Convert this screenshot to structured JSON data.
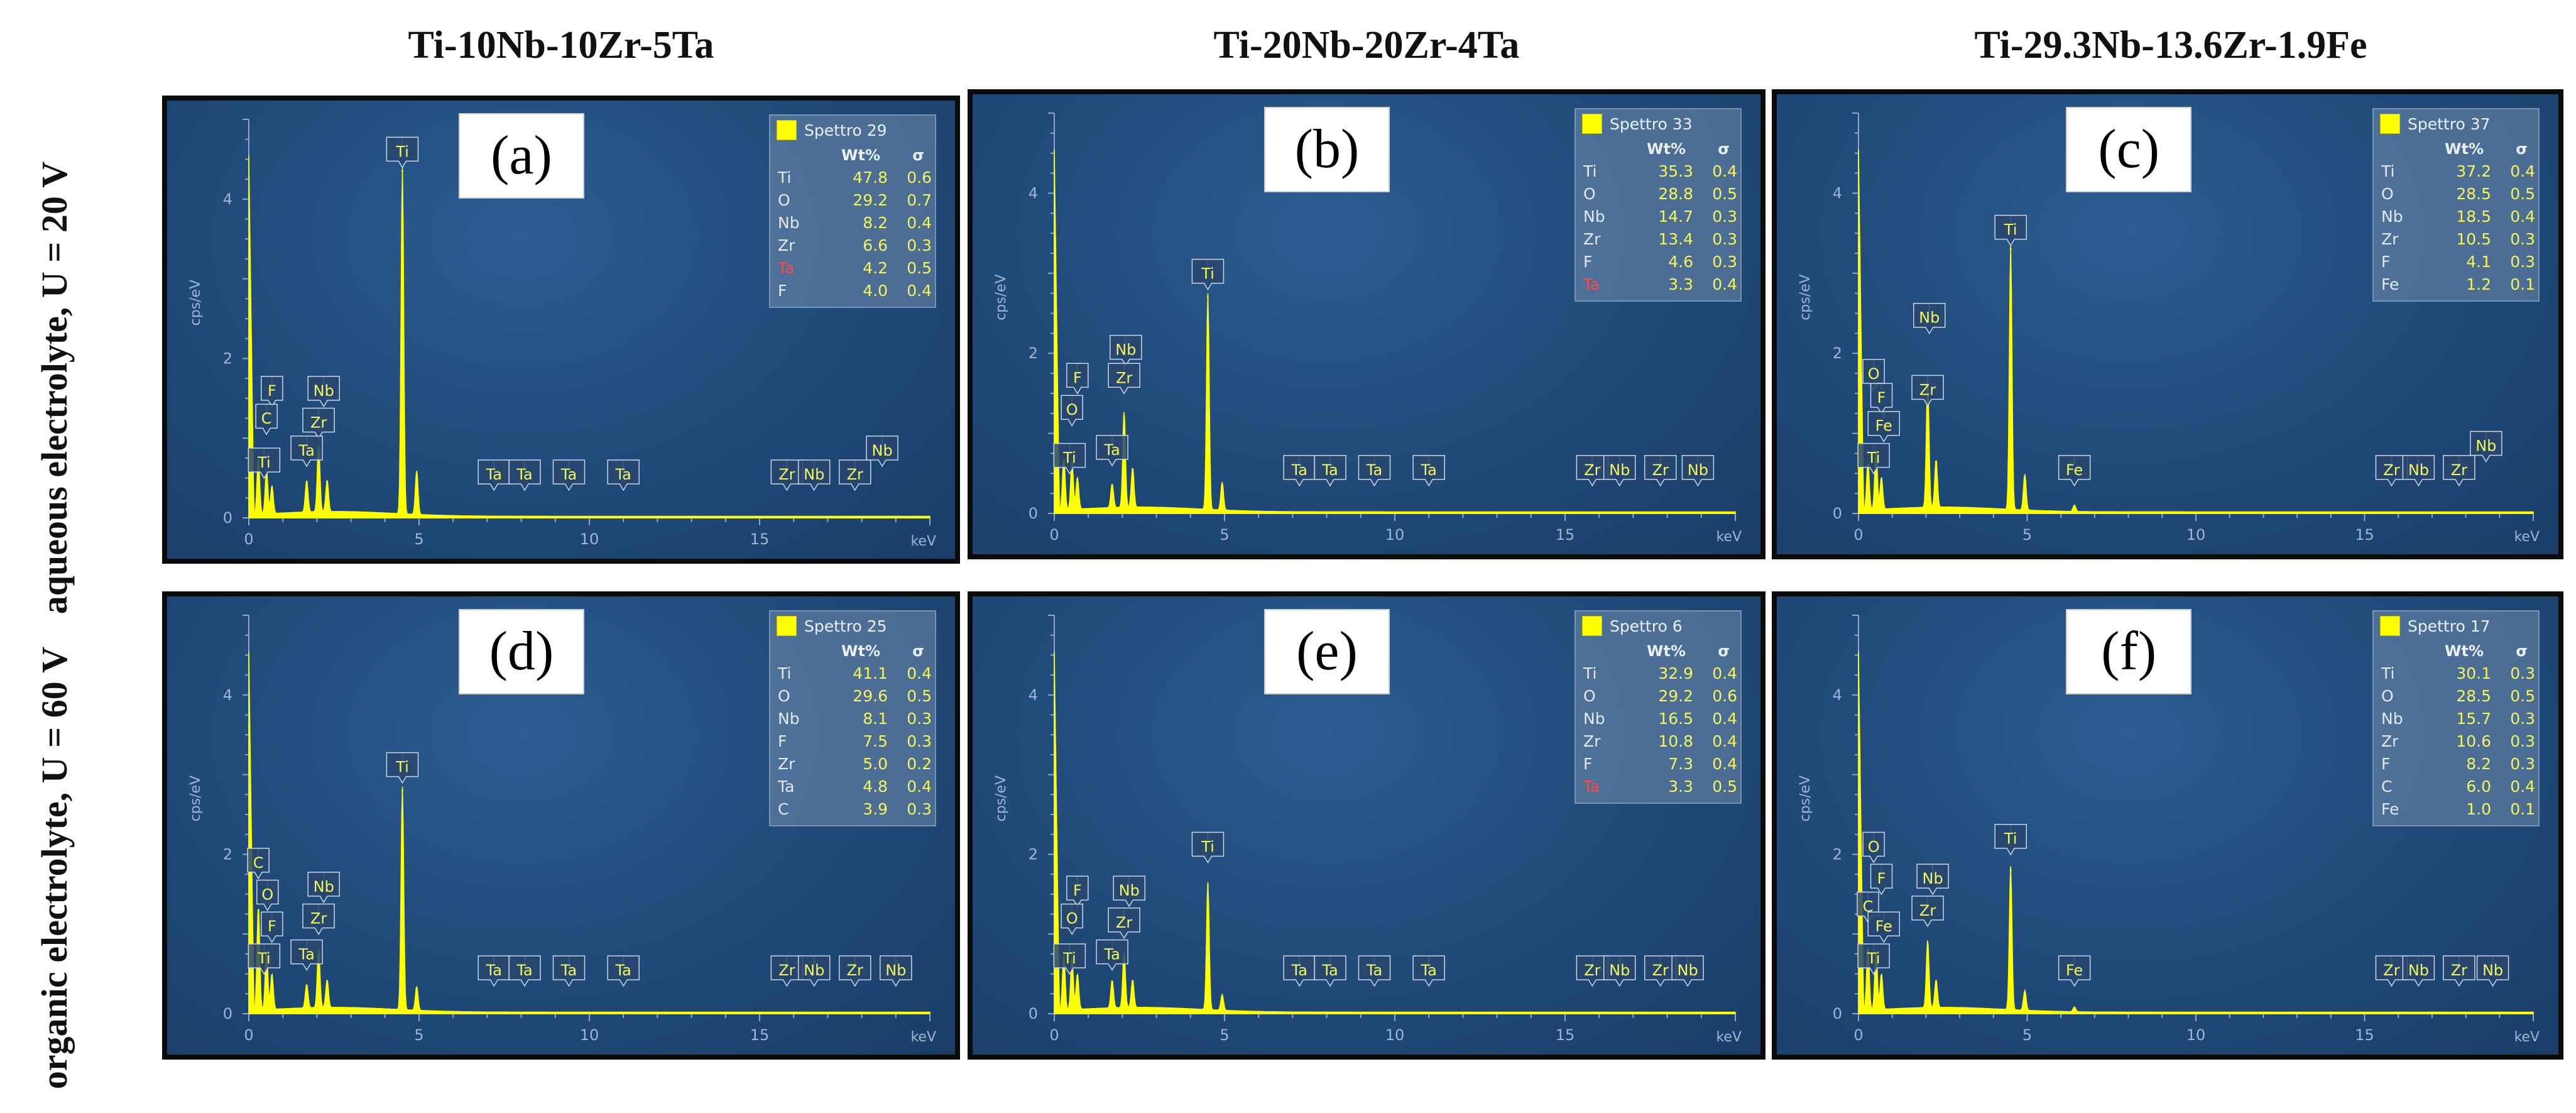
{
  "column_titles": [
    "Ti-10Nb-10Zr-5Ta",
    "Ti-20Nb-20Zr-4Ta",
    "Ti-29.3Nb-13.6Zr-1.9Fe"
  ],
  "row_titles": [
    "aqueous electrolyte, U = 20 V",
    "organic electrolyte, U = 60 V"
  ],
  "colors": {
    "background": "#1e4674",
    "spectrum": "#ffff00",
    "axis_text": "#9fb6d3",
    "highlight_element": "#ff4a4a"
  },
  "chart_data": [
    {
      "type": "line",
      "panel_label": "(a)",
      "spectrum_name": "Spettro 29",
      "xlabel": "keV",
      "ylabel": "cps/eV",
      "xlim": [
        0,
        20
      ],
      "ylim": [
        0,
        5
      ],
      "x_ticks": [
        "0",
        "5",
        "10",
        "15"
      ],
      "y_ticks": [
        "0",
        "2",
        "4"
      ],
      "table_header": [
        "Wt%",
        "σ"
      ],
      "composition": [
        {
          "element": "Ti",
          "wt": "47.8",
          "sigma": "0.6"
        },
        {
          "element": "O",
          "wt": "29.2",
          "sigma": "0.7"
        },
        {
          "element": "Nb",
          "wt": "8.2",
          "sigma": "0.4"
        },
        {
          "element": "Zr",
          "wt": "6.6",
          "sigma": "0.3"
        },
        {
          "element": "Ta",
          "wt": "4.2",
          "sigma": "0.5",
          "highlight": true
        },
        {
          "element": "F",
          "wt": "4.0",
          "sigma": "0.4"
        }
      ],
      "peaks": [
        {
          "x": 0.28,
          "y": 0.7
        },
        {
          "x": 0.52,
          "y": 0.55
        },
        {
          "x": 0.68,
          "y": 0.35
        },
        {
          "x": 1.7,
          "y": 0.4
        },
        {
          "x": 2.05,
          "y": 0.85
        },
        {
          "x": 2.3,
          "y": 0.4
        },
        {
          "x": 4.51,
          "y": 4.35
        },
        {
          "x": 4.93,
          "y": 0.55
        }
      ],
      "annotations": [
        {
          "text": "F",
          "x": 0.68,
          "y": 1.35
        },
        {
          "text": "C",
          "x": 0.52,
          "y": 1.0
        },
        {
          "text": "Ti",
          "x": 0.45,
          "y": 0.45
        },
        {
          "text": "Nb",
          "x": 2.2,
          "y": 1.35
        },
        {
          "text": "Zr",
          "x": 2.05,
          "y": 0.95
        },
        {
          "text": "Ta",
          "x": 1.7,
          "y": 0.6
        },
        {
          "text": "Ti",
          "x": 4.51,
          "y": 4.35
        },
        {
          "text": "Ta",
          "x": 7.2,
          "y": 0.3
        },
        {
          "text": "Ta",
          "x": 8.1,
          "y": 0.3
        },
        {
          "text": "Ta",
          "x": 9.4,
          "y": 0.3
        },
        {
          "text": "Ta",
          "x": 11.0,
          "y": 0.3
        },
        {
          "text": "Zr",
          "x": 15.8,
          "y": 0.3
        },
        {
          "text": "Nb",
          "x": 16.6,
          "y": 0.3
        },
        {
          "text": "Zr",
          "x": 17.8,
          "y": 0.3
        },
        {
          "text": "Nb",
          "x": 18.6,
          "y": 0.6
        }
      ]
    },
    {
      "type": "line",
      "panel_label": "(b)",
      "spectrum_name": "Spettro 33",
      "xlabel": "keV",
      "ylabel": "cps/eV",
      "xlim": [
        0,
        20
      ],
      "ylim": [
        0,
        5
      ],
      "x_ticks": [
        "0",
        "5",
        "10",
        "15"
      ],
      "y_ticks": [
        "0",
        "2",
        "4"
      ],
      "table_header": [
        "Wt%",
        "σ"
      ],
      "composition": [
        {
          "element": "Ti",
          "wt": "35.3",
          "sigma": "0.4"
        },
        {
          "element": "O",
          "wt": "28.8",
          "sigma": "0.5"
        },
        {
          "element": "Nb",
          "wt": "14.7",
          "sigma": "0.3"
        },
        {
          "element": "Zr",
          "wt": "13.4",
          "sigma": "0.3"
        },
        {
          "element": "F",
          "wt": "4.6",
          "sigma": "0.3"
        },
        {
          "element": "Ta",
          "wt": "3.3",
          "sigma": "0.4",
          "highlight": true
        }
      ],
      "peaks": [
        {
          "x": 0.28,
          "y": 0.65
        },
        {
          "x": 0.52,
          "y": 0.6
        },
        {
          "x": 0.68,
          "y": 0.4
        },
        {
          "x": 1.7,
          "y": 0.3
        },
        {
          "x": 2.05,
          "y": 1.2
        },
        {
          "x": 2.3,
          "y": 0.5
        },
        {
          "x": 4.51,
          "y": 2.7
        },
        {
          "x": 4.93,
          "y": 0.35
        }
      ],
      "annotations": [
        {
          "text": "F",
          "x": 0.68,
          "y": 1.45
        },
        {
          "text": "O",
          "x": 0.52,
          "y": 1.05
        },
        {
          "text": "Ti",
          "x": 0.45,
          "y": 0.45
        },
        {
          "text": "Nb",
          "x": 2.1,
          "y": 1.8
        },
        {
          "text": "Zr",
          "x": 2.05,
          "y": 1.45
        },
        {
          "text": "Ta",
          "x": 1.7,
          "y": 0.55
        },
        {
          "text": "Ti",
          "x": 4.51,
          "y": 2.75
        },
        {
          "text": "Ta",
          "x": 7.2,
          "y": 0.3
        },
        {
          "text": "Ta",
          "x": 8.1,
          "y": 0.3
        },
        {
          "text": "Ta",
          "x": 9.4,
          "y": 0.3
        },
        {
          "text": "Ta",
          "x": 11.0,
          "y": 0.3
        },
        {
          "text": "Zr",
          "x": 15.8,
          "y": 0.3
        },
        {
          "text": "Nb",
          "x": 16.6,
          "y": 0.3
        },
        {
          "text": "Zr",
          "x": 17.8,
          "y": 0.3
        },
        {
          "text": "Nb",
          "x": 18.9,
          "y": 0.3
        }
      ]
    },
    {
      "type": "line",
      "panel_label": "(c)",
      "spectrum_name": "Spettro 37",
      "xlabel": "keV",
      "ylabel": "cps/eV",
      "xlim": [
        0,
        20
      ],
      "ylim": [
        0,
        5
      ],
      "x_ticks": [
        "0",
        "5",
        "10",
        "15"
      ],
      "y_ticks": [
        "0",
        "2",
        "4"
      ],
      "table_header": [
        "Wt%",
        "σ"
      ],
      "composition": [
        {
          "element": "Ti",
          "wt": "37.2",
          "sigma": "0.4"
        },
        {
          "element": "O",
          "wt": "28.5",
          "sigma": "0.5"
        },
        {
          "element": "Nb",
          "wt": "18.5",
          "sigma": "0.4"
        },
        {
          "element": "Zr",
          "wt": "10.5",
          "sigma": "0.3"
        },
        {
          "element": "F",
          "wt": "4.1",
          "sigma": "0.3"
        },
        {
          "element": "Fe",
          "wt": "1.2",
          "sigma": "0.1"
        }
      ],
      "peaks": [
        {
          "x": 0.28,
          "y": 0.6
        },
        {
          "x": 0.52,
          "y": 0.75
        },
        {
          "x": 0.68,
          "y": 0.4
        },
        {
          "x": 2.05,
          "y": 1.6
        },
        {
          "x": 2.3,
          "y": 0.6
        },
        {
          "x": 4.51,
          "y": 3.3
        },
        {
          "x": 4.93,
          "y": 0.45
        },
        {
          "x": 6.4,
          "y": 0.08
        }
      ],
      "annotations": [
        {
          "text": "O",
          "x": 0.45,
          "y": 1.5
        },
        {
          "text": "F",
          "x": 0.68,
          "y": 1.2
        },
        {
          "text": "Fe",
          "x": 0.75,
          "y": 0.85
        },
        {
          "text": "Ti",
          "x": 0.45,
          "y": 0.45
        },
        {
          "text": "Nb",
          "x": 2.1,
          "y": 2.2
        },
        {
          "text": "Zr",
          "x": 2.05,
          "y": 1.3
        },
        {
          "text": "Ti",
          "x": 4.51,
          "y": 3.3
        },
        {
          "text": "Fe",
          "x": 6.4,
          "y": 0.3
        },
        {
          "text": "Zr",
          "x": 15.8,
          "y": 0.3
        },
        {
          "text": "Nb",
          "x": 16.6,
          "y": 0.3
        },
        {
          "text": "Zr",
          "x": 17.8,
          "y": 0.3
        },
        {
          "text": "Nb",
          "x": 18.6,
          "y": 0.6
        }
      ]
    },
    {
      "type": "line",
      "panel_label": "(d)",
      "spectrum_name": "Spettro 25",
      "xlabel": "keV",
      "ylabel": "cps/eV",
      "xlim": [
        0,
        20
      ],
      "ylim": [
        0,
        5
      ],
      "x_ticks": [
        "0",
        "5",
        "10",
        "15"
      ],
      "y_ticks": [
        "0",
        "2",
        "4"
      ],
      "table_header": [
        "Wt%",
        "σ"
      ],
      "composition": [
        {
          "element": "Ti",
          "wt": "41.1",
          "sigma": "0.4"
        },
        {
          "element": "O",
          "wt": "29.6",
          "sigma": "0.5"
        },
        {
          "element": "Nb",
          "wt": "8.1",
          "sigma": "0.3"
        },
        {
          "element": "F",
          "wt": "7.5",
          "sigma": "0.3"
        },
        {
          "element": "Zr",
          "wt": "5.0",
          "sigma": "0.2"
        },
        {
          "element": "Ta",
          "wt": "4.8",
          "sigma": "0.4"
        },
        {
          "element": "C",
          "wt": "3.9",
          "sigma": "0.3"
        }
      ],
      "peaks": [
        {
          "x": 0.28,
          "y": 1.3
        },
        {
          "x": 0.52,
          "y": 0.75
        },
        {
          "x": 0.68,
          "y": 0.45
        },
        {
          "x": 1.7,
          "y": 0.3
        },
        {
          "x": 2.05,
          "y": 0.75
        },
        {
          "x": 2.3,
          "y": 0.35
        },
        {
          "x": 4.51,
          "y": 2.8
        },
        {
          "x": 4.93,
          "y": 0.3
        }
      ],
      "annotations": [
        {
          "text": "C",
          "x": 0.28,
          "y": 1.65
        },
        {
          "text": "O",
          "x": 0.55,
          "y": 1.25
        },
        {
          "text": "F",
          "x": 0.68,
          "y": 0.85
        },
        {
          "text": "Ti",
          "x": 0.45,
          "y": 0.45
        },
        {
          "text": "Nb",
          "x": 2.2,
          "y": 1.35
        },
        {
          "text": "Zr",
          "x": 2.05,
          "y": 0.95
        },
        {
          "text": "Ta",
          "x": 1.7,
          "y": 0.5
        },
        {
          "text": "Ti",
          "x": 4.51,
          "y": 2.85
        },
        {
          "text": "Ta",
          "x": 7.2,
          "y": 0.3
        },
        {
          "text": "Ta",
          "x": 8.1,
          "y": 0.3
        },
        {
          "text": "Ta",
          "x": 9.4,
          "y": 0.3
        },
        {
          "text": "Ta",
          "x": 11.0,
          "y": 0.3
        },
        {
          "text": "Zr",
          "x": 15.8,
          "y": 0.3
        },
        {
          "text": "Nb",
          "x": 16.6,
          "y": 0.3
        },
        {
          "text": "Zr",
          "x": 17.8,
          "y": 0.3
        },
        {
          "text": "Nb",
          "x": 19.0,
          "y": 0.3
        }
      ]
    },
    {
      "type": "line",
      "panel_label": "(e)",
      "spectrum_name": "Spettro 6",
      "xlabel": "keV",
      "ylabel": "cps/eV",
      "xlim": [
        0,
        20
      ],
      "ylim": [
        0,
        5
      ],
      "x_ticks": [
        "0",
        "5",
        "10",
        "15"
      ],
      "y_ticks": [
        "0",
        "2",
        "4"
      ],
      "table_header": [
        "Wt%",
        "σ"
      ],
      "composition": [
        {
          "element": "Ti",
          "wt": "32.9",
          "sigma": "0.4"
        },
        {
          "element": "O",
          "wt": "29.2",
          "sigma": "0.6"
        },
        {
          "element": "Nb",
          "wt": "16.5",
          "sigma": "0.4"
        },
        {
          "element": "Zr",
          "wt": "10.8",
          "sigma": "0.4"
        },
        {
          "element": "F",
          "wt": "7.3",
          "sigma": "0.4"
        },
        {
          "element": "Ta",
          "wt": "3.3",
          "sigma": "0.5",
          "highlight": true
        }
      ],
      "peaks": [
        {
          "x": 0.28,
          "y": 0.7
        },
        {
          "x": 0.52,
          "y": 0.65
        },
        {
          "x": 0.68,
          "y": 0.45
        },
        {
          "x": 1.7,
          "y": 0.35
        },
        {
          "x": 2.05,
          "y": 0.7
        },
        {
          "x": 2.3,
          "y": 0.35
        },
        {
          "x": 4.51,
          "y": 1.6
        },
        {
          "x": 4.93,
          "y": 0.2
        }
      ],
      "annotations": [
        {
          "text": "F",
          "x": 0.68,
          "y": 1.3
        },
        {
          "text": "O",
          "x": 0.52,
          "y": 0.95
        },
        {
          "text": "Ti",
          "x": 0.45,
          "y": 0.45
        },
        {
          "text": "Nb",
          "x": 2.2,
          "y": 1.3
        },
        {
          "text": "Zr",
          "x": 2.05,
          "y": 0.9
        },
        {
          "text": "Ta",
          "x": 1.7,
          "y": 0.5
        },
        {
          "text": "Ti",
          "x": 4.51,
          "y": 1.85
        },
        {
          "text": "Ta",
          "x": 7.2,
          "y": 0.3
        },
        {
          "text": "Ta",
          "x": 8.1,
          "y": 0.3
        },
        {
          "text": "Ta",
          "x": 9.4,
          "y": 0.3
        },
        {
          "text": "Ta",
          "x": 11.0,
          "y": 0.3
        },
        {
          "text": "Zr",
          "x": 15.8,
          "y": 0.3
        },
        {
          "text": "Nb",
          "x": 16.6,
          "y": 0.3
        },
        {
          "text": "Zr",
          "x": 17.8,
          "y": 0.3
        },
        {
          "text": "Nb",
          "x": 18.6,
          "y": 0.3
        }
      ]
    },
    {
      "type": "line",
      "panel_label": "(f)",
      "spectrum_name": "Spettro 17",
      "xlabel": "keV",
      "ylabel": "cps/eV",
      "xlim": [
        0,
        20
      ],
      "ylim": [
        0,
        5
      ],
      "x_ticks": [
        "0",
        "5",
        "10",
        "15"
      ],
      "y_ticks": [
        "0",
        "2",
        "4"
      ],
      "table_header": [
        "Wt%",
        "σ"
      ],
      "composition": [
        {
          "element": "Ti",
          "wt": "30.1",
          "sigma": "0.3"
        },
        {
          "element": "O",
          "wt": "28.5",
          "sigma": "0.5"
        },
        {
          "element": "Nb",
          "wt": "15.7",
          "sigma": "0.3"
        },
        {
          "element": "Zr",
          "wt": "10.6",
          "sigma": "0.3"
        },
        {
          "element": "F",
          "wt": "8.2",
          "sigma": "0.3"
        },
        {
          "element": "C",
          "wt": "6.0",
          "sigma": "0.4"
        },
        {
          "element": "Fe",
          "wt": "1.0",
          "sigma": "0.1"
        }
      ],
      "peaks": [
        {
          "x": 0.28,
          "y": 0.8
        },
        {
          "x": 0.52,
          "y": 0.75
        },
        {
          "x": 0.68,
          "y": 0.45
        },
        {
          "x": 2.05,
          "y": 0.85
        },
        {
          "x": 2.3,
          "y": 0.35
        },
        {
          "x": 4.51,
          "y": 1.8
        },
        {
          "x": 4.93,
          "y": 0.25
        },
        {
          "x": 6.4,
          "y": 0.06
        }
      ],
      "annotations": [
        {
          "text": "O",
          "x": 0.45,
          "y": 1.85
        },
        {
          "text": "F",
          "x": 0.68,
          "y": 1.45
        },
        {
          "text": "C",
          "x": 0.28,
          "y": 1.1
        },
        {
          "text": "Fe",
          "x": 0.75,
          "y": 0.85
        },
        {
          "text": "Ti",
          "x": 0.45,
          "y": 0.45
        },
        {
          "text": "Nb",
          "x": 2.2,
          "y": 1.45
        },
        {
          "text": "Zr",
          "x": 2.05,
          "y": 1.05
        },
        {
          "text": "Ti",
          "x": 4.51,
          "y": 1.95
        },
        {
          "text": "Fe",
          "x": 6.4,
          "y": 0.3
        },
        {
          "text": "Zr",
          "x": 15.8,
          "y": 0.3
        },
        {
          "text": "Nb",
          "x": 16.6,
          "y": 0.3
        },
        {
          "text": "Zr",
          "x": 17.8,
          "y": 0.3
        },
        {
          "text": "Nb",
          "x": 18.8,
          "y": 0.3
        }
      ]
    }
  ]
}
